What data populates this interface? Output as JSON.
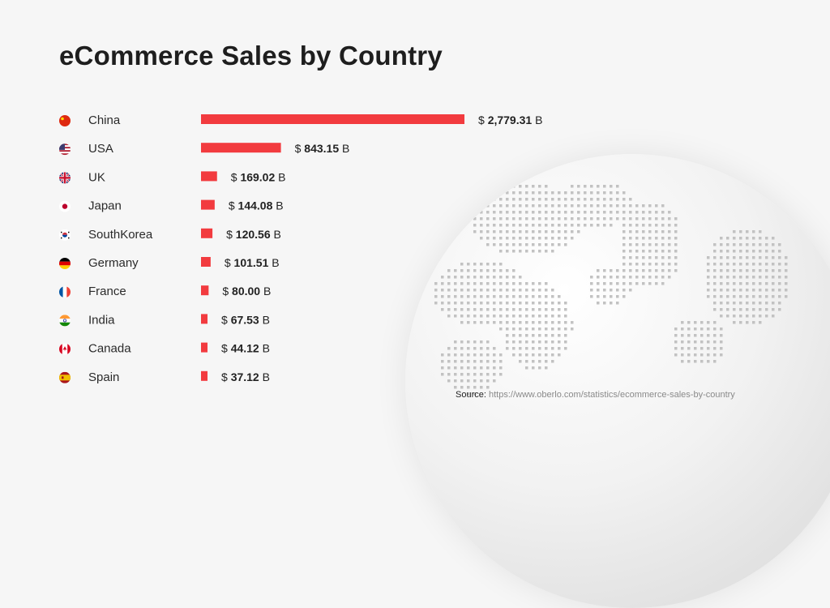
{
  "title": "eCommerce Sales by Country",
  "source": {
    "label": "Source:",
    "url": "https://www.oberlo.com/statistics/ecommerce-sales-by-country"
  },
  "colors": {
    "bar": "#f23b3f",
    "text": "#222222",
    "globe": "#e2e2e2"
  },
  "chart_data": {
    "type": "bar",
    "orientation": "horizontal",
    "categories": [
      "China",
      "USA",
      "UK",
      "Japan",
      "SouthKorea",
      "Germany",
      "France",
      "India",
      "Canada",
      "Spain"
    ],
    "values": [
      2779.31,
      843.15,
      169.02,
      144.08,
      120.56,
      101.51,
      80.0,
      67.53,
      44.12,
      37.12
    ],
    "value_labels": [
      "2,779.31",
      "843.15",
      "169.02",
      "144.08",
      "120.56",
      "101.51",
      "80.00",
      "67.53",
      "44.12",
      "37.12"
    ],
    "value_prefix": "$",
    "value_suffix": "B",
    "flags": [
      "china-flag-icon",
      "usa-flag-icon",
      "uk-flag-icon",
      "japan-flag-icon",
      "south-korea-flag-icon",
      "germany-flag-icon",
      "france-flag-icon",
      "india-flag-icon",
      "canada-flag-icon",
      "spain-flag-icon"
    ],
    "grid": false,
    "legend": "none"
  }
}
